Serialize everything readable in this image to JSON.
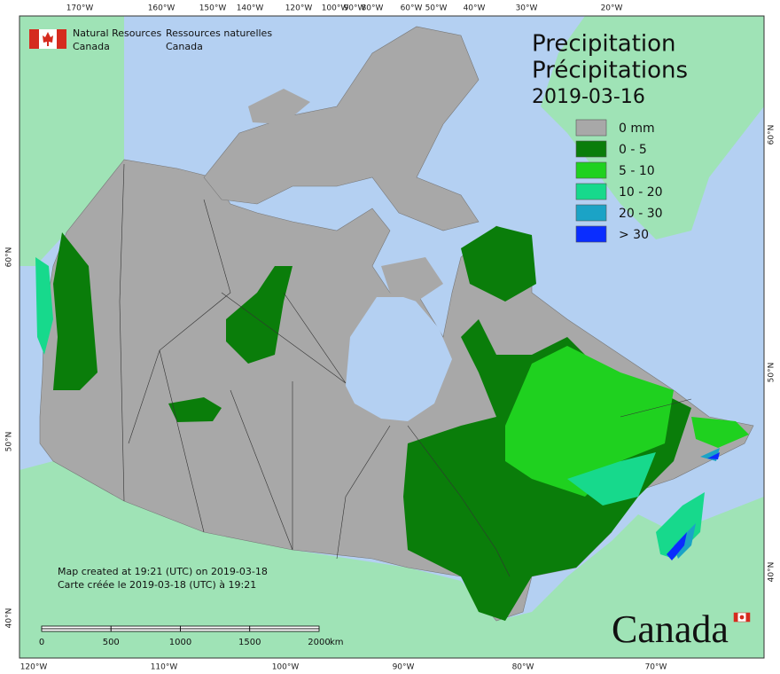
{
  "header": {
    "agency_en": [
      "Natural Resources",
      "Canada"
    ],
    "agency_fr": [
      "Ressources naturelles",
      "Canada"
    ]
  },
  "title": {
    "lines": [
      "Precipitation",
      "Précipitations"
    ],
    "date": "2019-03-16"
  },
  "legend": [
    {
      "label": "0 mm",
      "color": "#a8a8a8"
    },
    {
      "label": "0 - 5",
      "color": "#0a7d0a"
    },
    {
      "label": "5 - 10",
      "color": "#1fd11f"
    },
    {
      "label": "10 - 20",
      "color": "#17d98c"
    },
    {
      "label": "20 - 30",
      "color": "#1ba3c6"
    },
    {
      "label": "> 30",
      "color": "#0a2dff"
    }
  ],
  "footer": [
    "Map created at 19:21 (UTC) on 2019-03-18",
    "Carte créée le 2019-03-18 (UTC) à 19:21"
  ],
  "scale_bar": {
    "ticks": [
      0,
      500,
      1000,
      1500,
      2000
    ],
    "unit": "km"
  },
  "graticule": {
    "top": [
      "170°W",
      "160°W",
      "150°W",
      "140°W",
      "120°W",
      "100°W",
      "90°W",
      "80°W",
      "60°W",
      "50°W",
      "40°W",
      "30°W",
      "20°W"
    ],
    "bottom": [
      "120°W",
      "110°W",
      "100°W",
      "90°W",
      "80°W",
      "70°W"
    ],
    "left": [
      "60°N",
      "50°N",
      "40°N"
    ],
    "right": [
      "60°N",
      "50°N",
      "40°N"
    ]
  },
  "wordmark": "Canada"
}
